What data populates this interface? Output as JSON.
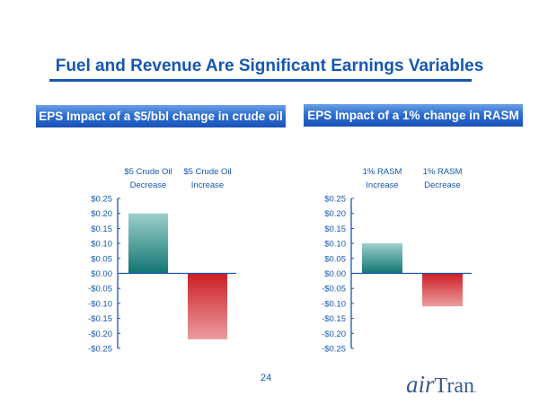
{
  "title": "Fuel and Revenue Are Significant Earnings Variables",
  "page_number": "24",
  "logo_text": "AirTran",
  "chart_data": [
    {
      "type": "bar",
      "title": "EPS Impact of a $5/bbl change in crude oil",
      "categories": [
        "$5 Crude Oil|Decrease",
        "$5 Crude Oil|Increase"
      ],
      "category_lines": [
        [
          "$5 Crude Oil",
          "Decrease"
        ],
        [
          "$5 Crude Oil",
          "Increase"
        ]
      ],
      "values": [
        0.2,
        -0.22
      ],
      "ylim": [
        -0.25,
        0.25
      ],
      "yticks": [
        "$0.25",
        "$0.20",
        "$0.15",
        "$0.10",
        "$0.05",
        "$0.00",
        "-$0.05",
        "-$0.10",
        "-$0.15",
        "-$0.20",
        "-$0.25"
      ],
      "colors": [
        "#1a7f7c",
        "#cc2229"
      ],
      "grid": false
    },
    {
      "type": "bar",
      "title": "EPS Impact of a 1% change in RASM",
      "categories": [
        "1% RASM|Increase",
        "1% RASM|Decrease"
      ],
      "category_lines": [
        [
          "1% RASM",
          "Increase"
        ],
        [
          "1% RASM",
          "Decrease"
        ]
      ],
      "values": [
        0.1,
        -0.11
      ],
      "ylim": [
        -0.25,
        0.25
      ],
      "yticks": [
        "$0.25",
        "$0.20",
        "$0.15",
        "$0.10",
        "$0.05",
        "$0.00",
        "-$0.05",
        "-$0.10",
        "-$0.15",
        "-$0.20",
        "-$0.25"
      ],
      "colors": [
        "#1a7f7c",
        "#cc2229"
      ],
      "grid": false
    }
  ]
}
